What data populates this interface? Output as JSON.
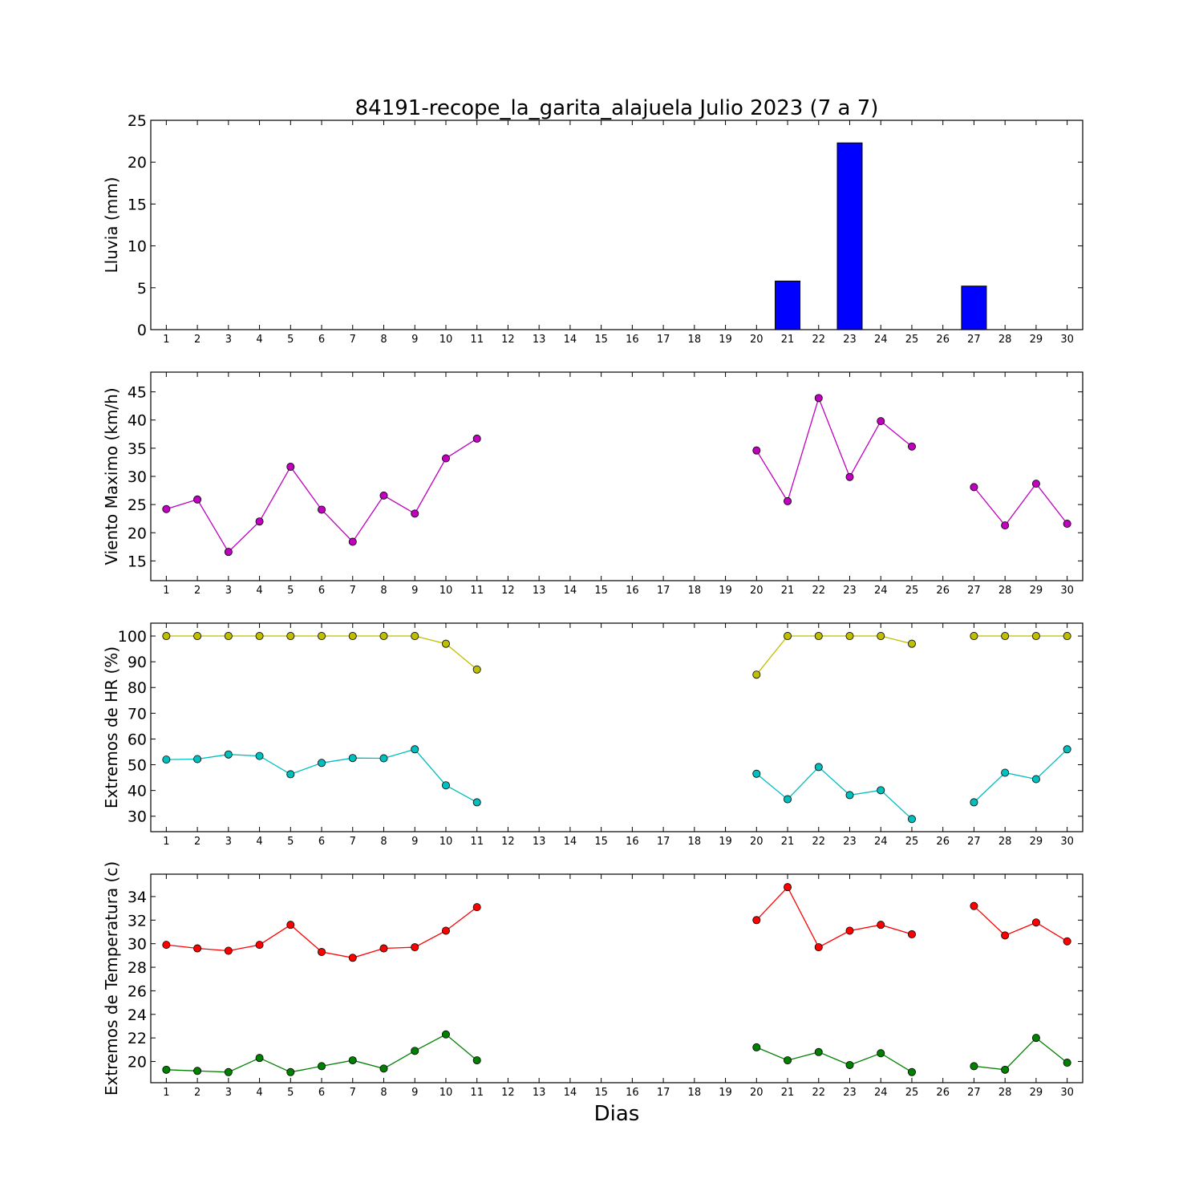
{
  "chart_data": {
    "title": "84191-recope_la_garita_alajuela Julio 2023  (7 a 7)",
    "xlabel": "Dias",
    "x_ticks": [
      1,
      2,
      3,
      4,
      5,
      6,
      7,
      8,
      9,
      10,
      11,
      12,
      13,
      14,
      15,
      16,
      17,
      18,
      19,
      20,
      21,
      22,
      23,
      24,
      25,
      26,
      27,
      28,
      29,
      30
    ],
    "panels": [
      {
        "id": "lluvia",
        "type": "bar",
        "ylabel": "Lluvia (mm)",
        "ylim": [
          0,
          25
        ],
        "yticks": [
          0,
          5,
          10,
          15,
          20,
          25
        ],
        "series": [
          {
            "color": "#0000ff",
            "x": [
              1,
              2,
              3,
              4,
              5,
              6,
              7,
              8,
              9,
              10,
              11,
              20,
              21,
              22,
              23,
              24,
              25,
              27,
              28,
              29,
              30
            ],
            "values": [
              0,
              0,
              0,
              0,
              0,
              0,
              0,
              0,
              0,
              0,
              0,
              0,
              5.8,
              0,
              22.3,
              0,
              0,
              5.2,
              0,
              0,
              0
            ]
          }
        ]
      },
      {
        "id": "viento",
        "type": "line",
        "ylabel": "Viento Maximo (km/h)",
        "ylim": [
          11.5,
          48.5
        ],
        "yticks": [
          15,
          20,
          25,
          30,
          35,
          40,
          45
        ],
        "series": [
          {
            "color": "#bf00bf",
            "x": [
              1,
              2,
              3,
              4,
              5,
              6,
              7,
              8,
              9,
              10,
              11,
              null,
              20,
              21,
              22,
              23,
              24,
              25,
              null,
              27,
              28,
              29,
              30
            ],
            "values": [
              24.2,
              25.9,
              16.6,
              22.0,
              31.7,
              24.1,
              18.4,
              26.6,
              23.4,
              33.2,
              36.7,
              null,
              34.6,
              25.6,
              43.9,
              29.9,
              39.8,
              35.3,
              null,
              28.1,
              21.3,
              28.7,
              21.6
            ]
          }
        ]
      },
      {
        "id": "hr",
        "type": "line",
        "ylabel": "Extremos de HR (%)",
        "ylim": [
          24,
          105
        ],
        "yticks": [
          30,
          40,
          50,
          60,
          70,
          80,
          90,
          100
        ],
        "series": [
          {
            "color": "#bfbf00",
            "x": [
              1,
              2,
              3,
              4,
              5,
              6,
              7,
              8,
              9,
              10,
              11,
              null,
              20,
              21,
              22,
              23,
              24,
              25,
              null,
              27,
              28,
              29,
              30
            ],
            "values": [
              100,
              100,
              100,
              100,
              100,
              100,
              100,
              100,
              100,
              97,
              87,
              null,
              85,
              100,
              100,
              100,
              100,
              97,
              null,
              100,
              100,
              100,
              100
            ]
          },
          {
            "color": "#00bfbf",
            "x": [
              1,
              2,
              3,
              4,
              5,
              6,
              7,
              8,
              9,
              10,
              11,
              null,
              20,
              21,
              22,
              23,
              24,
              25,
              null,
              27,
              28,
              29,
              30
            ],
            "values": [
              52,
              52.2,
              54,
              53.4,
              46.3,
              50.7,
              52.6,
              52.5,
              56,
              42,
              35.4,
              null,
              46.5,
              36.6,
              49.1,
              38.2,
              40.1,
              28.9,
              null,
              35.4,
              46.9,
              44.4,
              56
            ]
          }
        ]
      },
      {
        "id": "temperatura",
        "type": "line",
        "ylabel": "Extremos de Temperatura (c)",
        "ylim": [
          18.2,
          35.9
        ],
        "yticks": [
          20,
          22,
          24,
          26,
          28,
          30,
          32,
          34
        ],
        "series": [
          {
            "color": "#ff0000",
            "x": [
              1,
              2,
              3,
              4,
              5,
              6,
              7,
              8,
              9,
              10,
              11,
              null,
              20,
              21,
              22,
              23,
              24,
              25,
              null,
              27,
              28,
              29,
              30
            ],
            "values": [
              29.9,
              29.6,
              29.4,
              29.9,
              31.6,
              29.3,
              28.8,
              29.6,
              29.7,
              31.1,
              33.1,
              null,
              32.0,
              34.8,
              29.7,
              31.1,
              31.6,
              30.8,
              null,
              33.2,
              30.7,
              31.8,
              30.2
            ]
          },
          {
            "color": "#008000",
            "x": [
              1,
              2,
              3,
              4,
              5,
              6,
              7,
              8,
              9,
              10,
              11,
              null,
              20,
              21,
              22,
              23,
              24,
              25,
              null,
              27,
              28,
              29,
              30
            ],
            "values": [
              19.3,
              19.2,
              19.1,
              20.3,
              19.1,
              19.6,
              20.1,
              19.4,
              20.9,
              22.3,
              20.1,
              null,
              21.2,
              20.1,
              20.8,
              19.7,
              20.7,
              19.1,
              null,
              19.6,
              19.3,
              22.0,
              19.9
            ]
          }
        ]
      }
    ]
  }
}
